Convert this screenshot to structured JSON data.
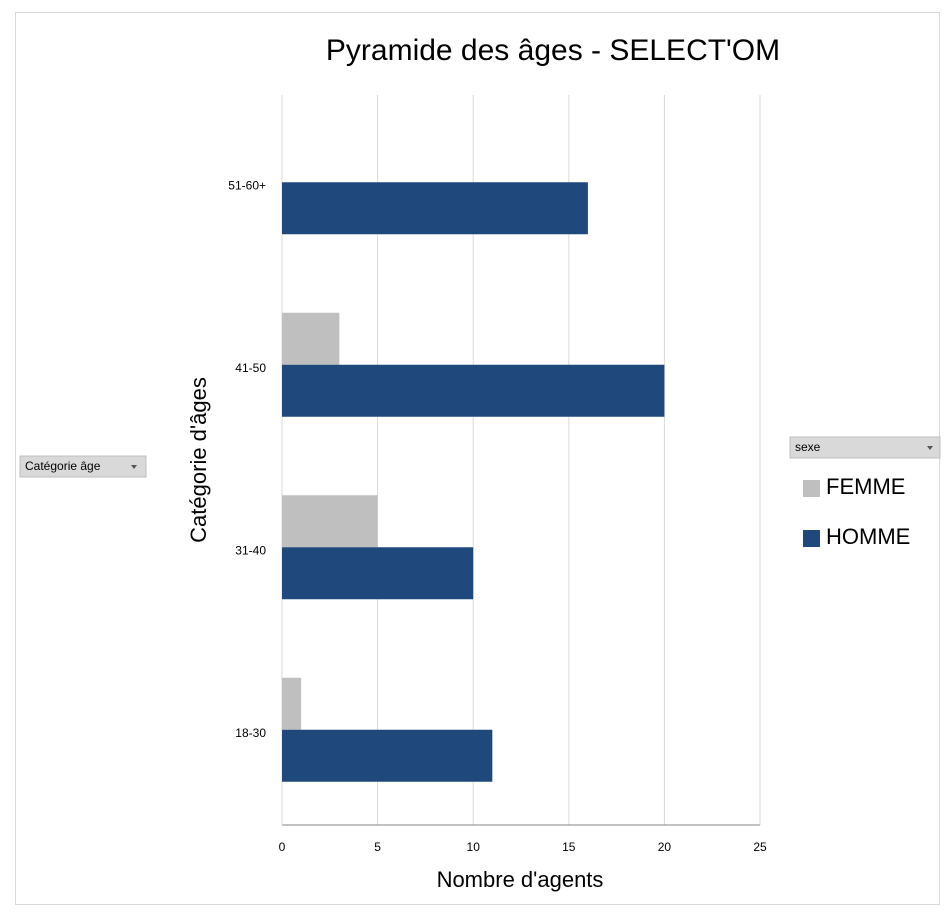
{
  "chart_data": {
    "type": "hbar",
    "title": "Pyramide des âges - SELECT'OM",
    "x_label": "Nombre d'agents",
    "y_label": "Catégorie d'âges",
    "row_field": "Catégorie âge",
    "legend_title": "sexe",
    "categories": [
      "18-30",
      "31-40",
      "41-50",
      "51-60+"
    ],
    "series": [
      {
        "name": "FEMME",
        "color": "#bfbfbf",
        "values": [
          1,
          5,
          3,
          null
        ]
      },
      {
        "name": "HOMME",
        "color": "#1f497d",
        "values": [
          11,
          10,
          20,
          16
        ]
      }
    ],
    "xlim": [
      0,
      25
    ],
    "xticks": [
      0,
      5,
      10,
      15,
      20,
      25
    ],
    "grid": true,
    "legend": "right"
  }
}
